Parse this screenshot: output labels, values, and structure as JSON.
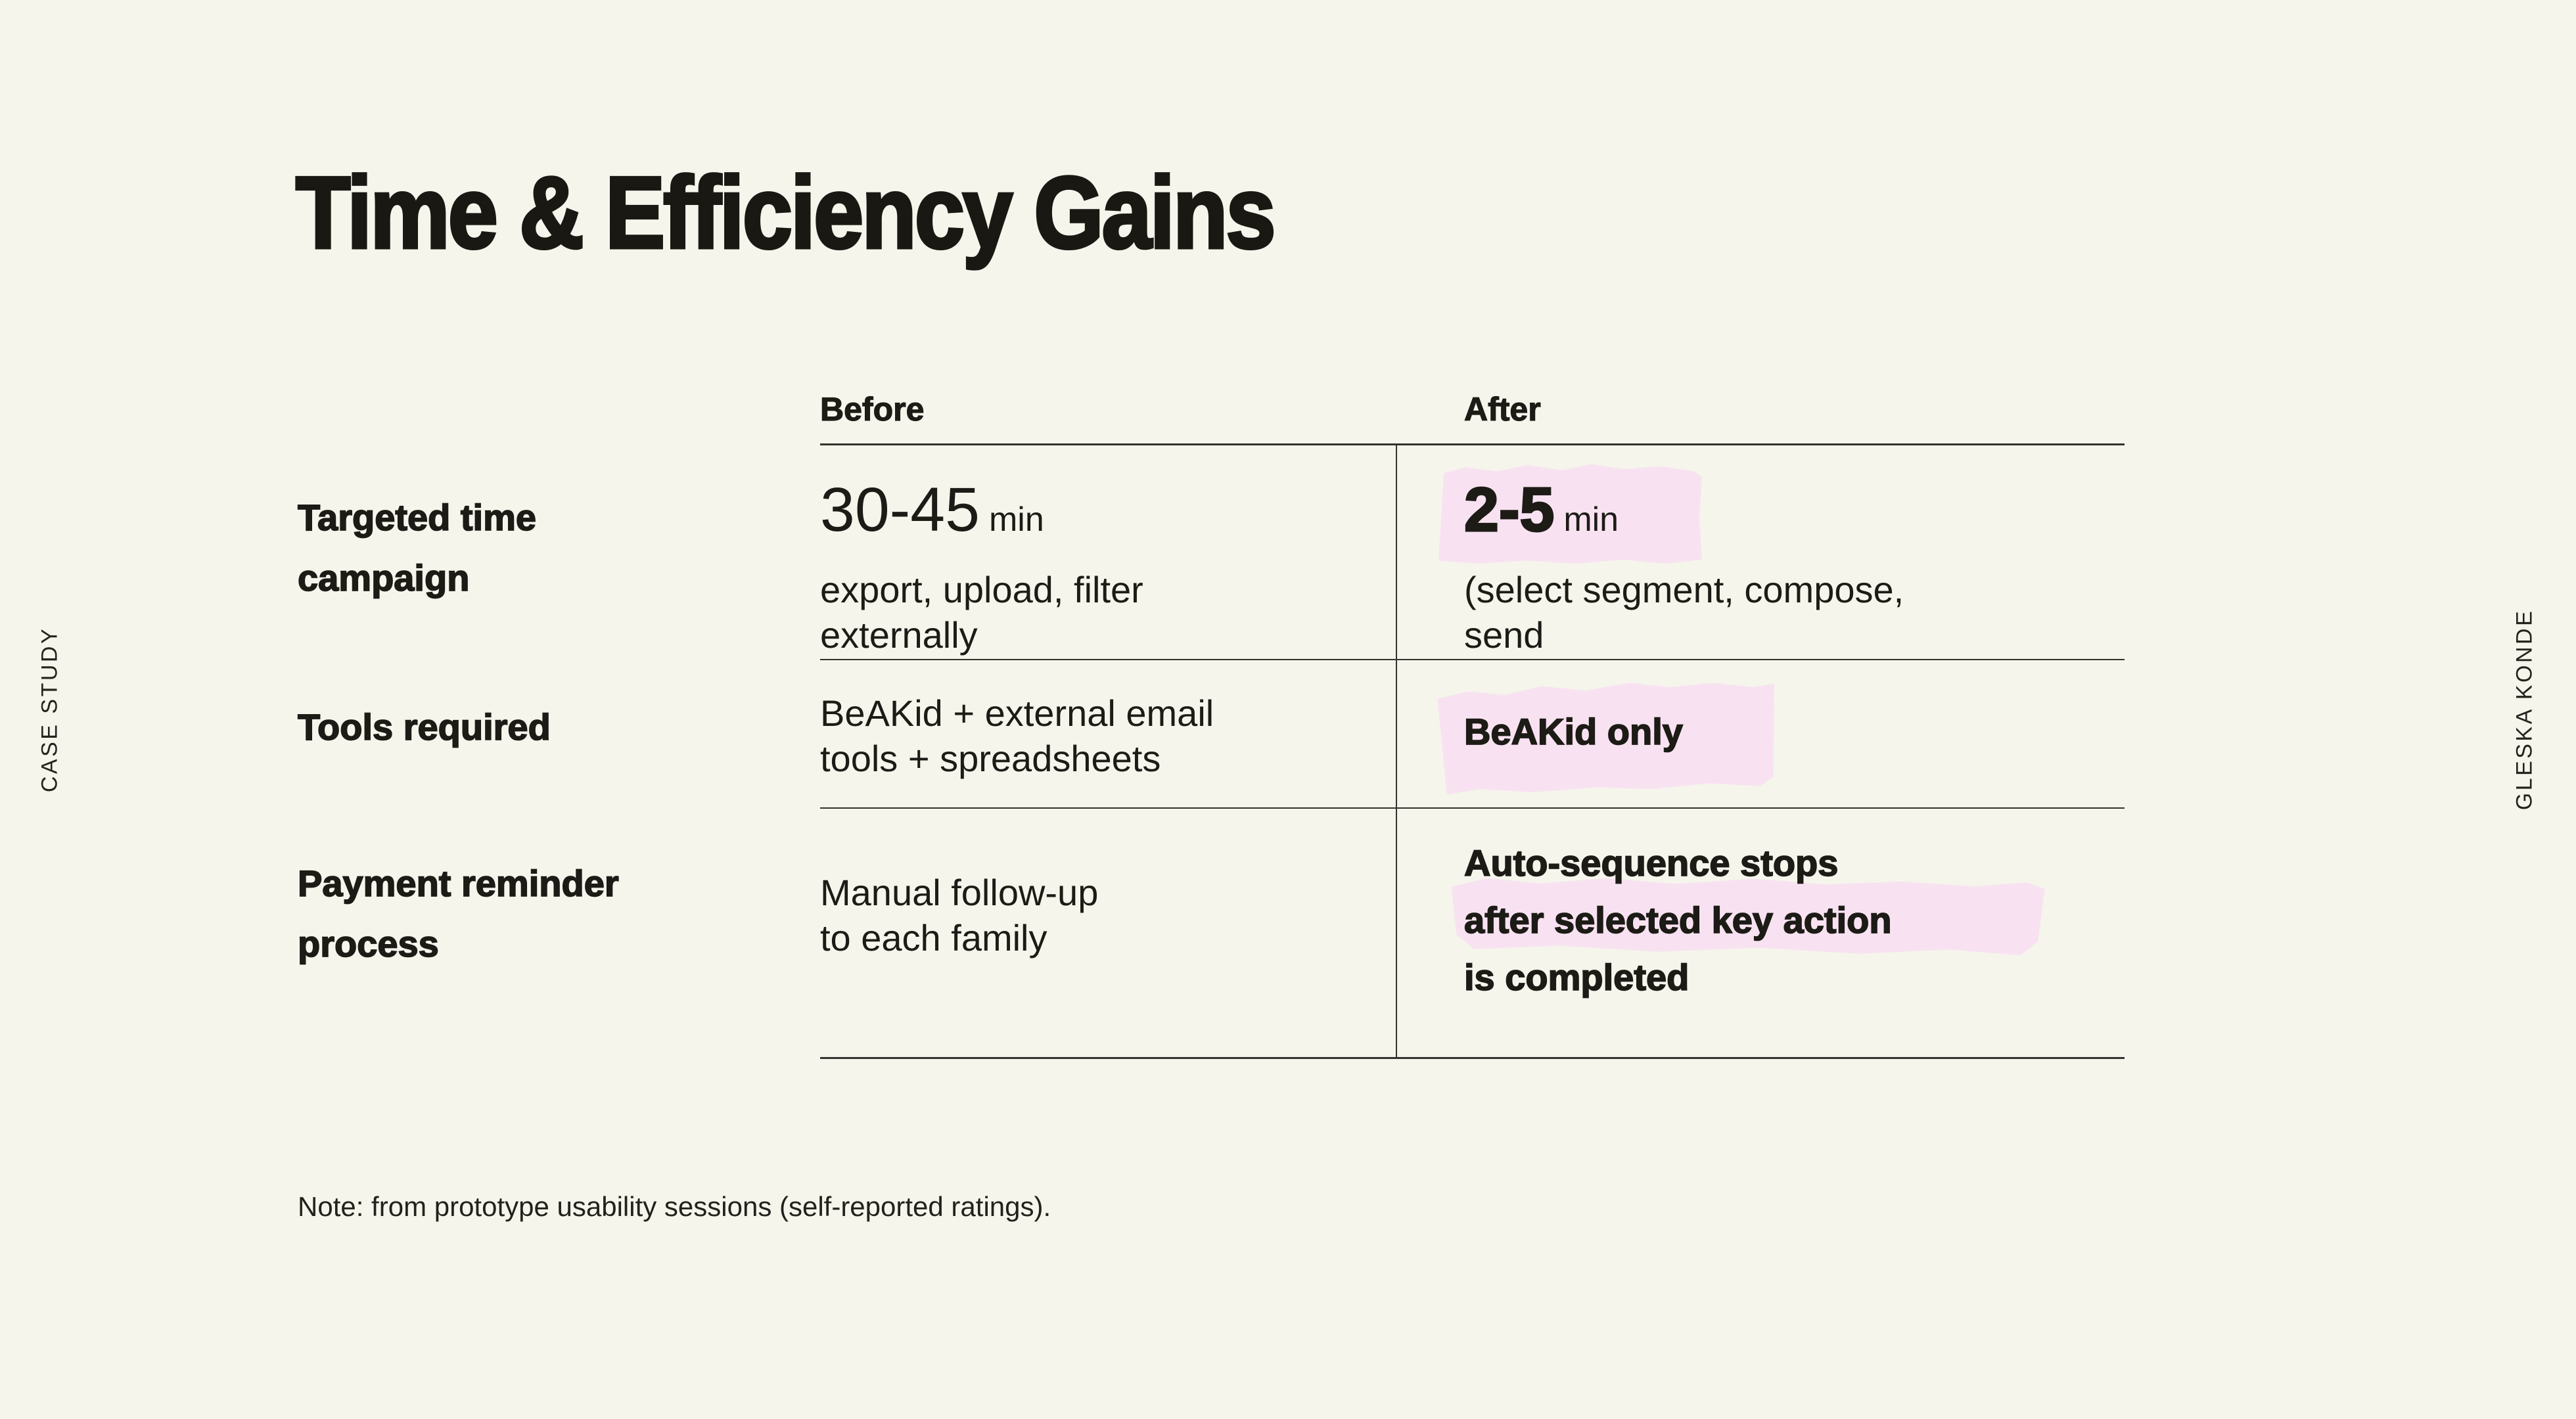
{
  "colors": {
    "background": "#F5F5EC",
    "text": "#1D1B16",
    "rule_line": "#33322D",
    "highlight_pink": "#F8E2F1"
  },
  "side_labels": {
    "left": "CASE STUDY",
    "right": "GLESKA KONDE"
  },
  "title": "Time & Efficiency Gains",
  "table": {
    "headers": {
      "before": "Before",
      "after": "After"
    },
    "rows": [
      {
        "label_lines": [
          "Targeted time",
          "campaign"
        ],
        "before": {
          "metric": "30-45",
          "unit": "min",
          "desc_lines": [
            "export, upload, filter",
            "externally"
          ]
        },
        "after": {
          "metric": "2-5",
          "unit": "min",
          "desc_lines": [
            "(select segment, compose,",
            "send"
          ],
          "highlighted": true
        }
      },
      {
        "label_lines": [
          "Tools required"
        ],
        "before": {
          "desc_lines": [
            "BeAKid + external email",
            "tools + spreadsheets"
          ]
        },
        "after": {
          "desc_lines": [
            "BeAKid only"
          ],
          "highlighted": true
        }
      },
      {
        "label_lines": [
          "Payment reminder",
          "process"
        ],
        "before": {
          "desc_lines": [
            "Manual follow-up",
            "to each family"
          ]
        },
        "after": {
          "desc_lines": [
            "Auto-sequence stops",
            "after selected key action",
            "is completed"
          ],
          "highlighted": true
        }
      }
    ]
  },
  "note": "Note: from prototype usability sessions (self-reported ratings)."
}
